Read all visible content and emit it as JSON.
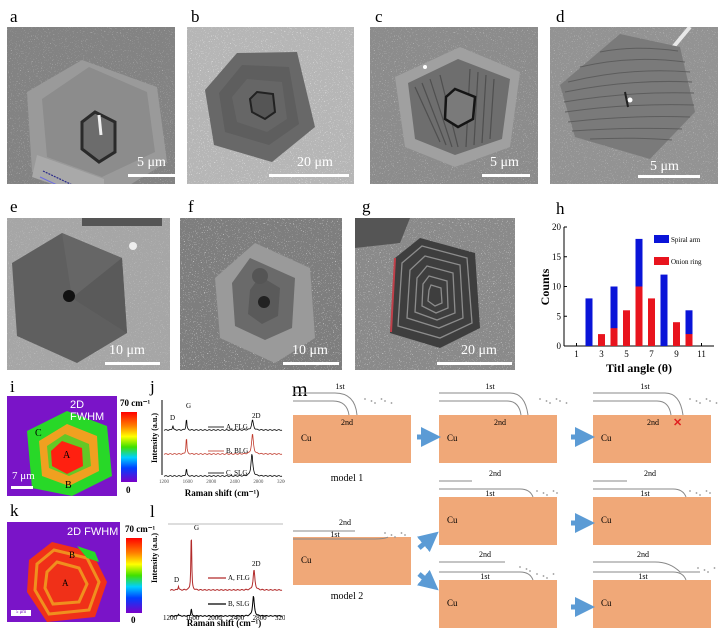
{
  "figure": {
    "panels": {
      "a": {
        "label": "a",
        "scale_bar": "5 μm"
      },
      "b": {
        "label": "b",
        "scale_bar": "20 μm"
      },
      "c": {
        "label": "c",
        "scale_bar": "5 μm"
      },
      "d": {
        "label": "d",
        "scale_bar": "5 μm"
      },
      "e": {
        "label": "e",
        "scale_bar": "10 μm"
      },
      "f": {
        "label": "f",
        "scale_bar": "10 μm"
      },
      "g": {
        "label": "g",
        "scale_bar": "20 μm"
      },
      "h": {
        "label": "h"
      },
      "i": {
        "label": "i",
        "map_title": "2D FWHM",
        "colorbar_max": "70 cm⁻¹",
        "colorbar_min": "0",
        "scale_bar": "7 μm",
        "points": [
          "A",
          "B",
          "C"
        ]
      },
      "j": {
        "label": "j"
      },
      "k": {
        "label": "k",
        "map_title": "2D FWHM",
        "colorbar_max": "70 cm⁻¹",
        "colorbar_min": "0",
        "scale_bar": "5 μm",
        "points": [
          "A",
          "B"
        ]
      },
      "l": {
        "label": "l"
      },
      "m": {
        "label": "m",
        "substrate_label": "Cu",
        "layer_1st": "1st",
        "layer_2nd": "2nd",
        "model1_label": "model 1",
        "model2_label": "model 2",
        "termination_mark": "✕"
      }
    }
  },
  "chart_data": [
    {
      "panel": "h",
      "type": "bar",
      "title": "",
      "xlabel": "Titl angle (θ)",
      "ylabel": "Counts",
      "xlim": [
        0,
        12
      ],
      "ylim": [
        0,
        20
      ],
      "xticks": [
        1,
        3,
        5,
        7,
        9,
        11
      ],
      "yticks": [
        0,
        5,
        10,
        15,
        20
      ],
      "legend_position": "upper right",
      "stacked": "overlaid",
      "categories": [
        2,
        3,
        4,
        5,
        6,
        7,
        8,
        9,
        10
      ],
      "series": [
        {
          "name": "Spiral arm",
          "color": "#0a14d8",
          "values": [
            8,
            0,
            10,
            0,
            18,
            0,
            12,
            0,
            6
          ]
        },
        {
          "name": "Onion ring",
          "color": "#e8141e",
          "values": [
            0,
            2,
            3,
            6,
            10,
            8,
            0,
            4,
            2
          ]
        }
      ]
    },
    {
      "panel": "j",
      "type": "line",
      "xlabel": "Raman shift (cm⁻¹)",
      "ylabel": "Intensity (a.u.)",
      "xlim": [
        1200,
        3200
      ],
      "xticks": [
        1200,
        1600,
        2000,
        2400,
        2800,
        3200
      ],
      "peak_labels": [
        "D",
        "G",
        "2D"
      ],
      "series": [
        {
          "name": "A, FLG",
          "color": "#000000",
          "peaks": {
            "D": 1350,
            "G": 1580,
            "2D": 2700
          }
        },
        {
          "name": "B, BLG",
          "color": "#c0392b",
          "peaks": {
            "G": 1580,
            "2D": 2700
          }
        },
        {
          "name": "C, SLG",
          "color": "#000000",
          "peaks": {
            "G": 1580,
            "2D": 2690
          }
        }
      ]
    },
    {
      "panel": "l",
      "type": "line",
      "xlabel": "Raman shift (cm⁻¹)",
      "ylabel": "Intensity (a.u.)",
      "xlim": [
        1200,
        3200
      ],
      "xticks": [
        1200,
        1600,
        2000,
        2400,
        2800,
        3200
      ],
      "peak_labels": [
        "D",
        "G",
        "2D"
      ],
      "series": [
        {
          "name": "A, FLG",
          "color": "#b22a2a",
          "peaks": {
            "D": 1350,
            "G": 1580,
            "2D": 2700
          }
        },
        {
          "name": "B, SLG",
          "color": "#000000",
          "peaks": {
            "D": 1350,
            "G": 1580,
            "2D": 2690
          }
        }
      ]
    }
  ]
}
